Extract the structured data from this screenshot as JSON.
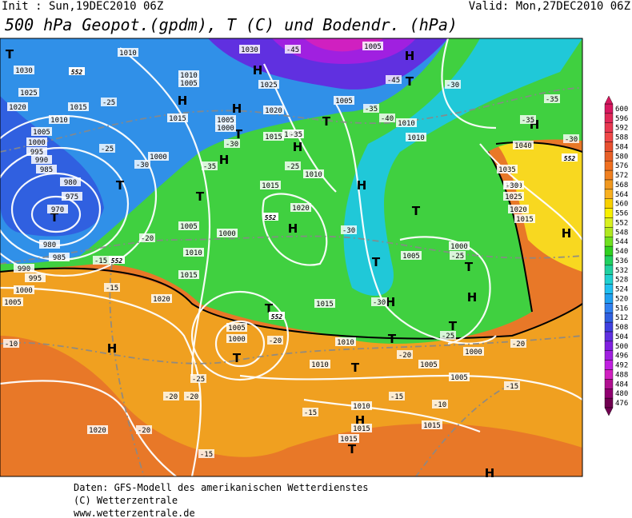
{
  "header": {
    "init": "Init : Sun,19DEC2010 06Z",
    "valid": "Valid: Mon,27DEC2010 06Z",
    "title": "500 hPa Geopot.(gpdm), T (C) und Bodendr. (hPa)"
  },
  "footer": [
    "Daten: GFS-Modell des amerikanischen Wetterdienstes",
    "(C) Wetterzentrale",
    "www.wetterzentrale.de"
  ],
  "colorbar": {
    "ticks": [
      600,
      596,
      592,
      588,
      584,
      580,
      576,
      572,
      568,
      564,
      560,
      556,
      552,
      548,
      544,
      540,
      536,
      532,
      528,
      524,
      520,
      516,
      512,
      508,
      504,
      500,
      496,
      492,
      488,
      484,
      480,
      476
    ],
    "colors": [
      "#d81860",
      "#e02858",
      "#e83850",
      "#f04848",
      "#e85030",
      "#e86028",
      "#f07020",
      "#f08020",
      "#f09820",
      "#f8b020",
      "#f8d000",
      "#f8f000",
      "#d8f020",
      "#b0e820",
      "#70e020",
      "#30d020",
      "#20d060",
      "#20d0a0",
      "#20d0d0",
      "#20c0f0",
      "#20a0f0",
      "#3080f0",
      "#3060e0",
      "#4040e0",
      "#6030e0",
      "#8020e0",
      "#a020e0",
      "#c020e0",
      "#d020c0",
      "#b01090",
      "#900070",
      "#700050"
    ]
  },
  "pressure_centers": [
    "T",
    "H",
    "H",
    "H",
    "T",
    "H",
    "T",
    "T",
    "T",
    "H",
    "H",
    "H",
    "T",
    "T",
    "H",
    "T",
    "H",
    "H",
    "T",
    "T",
    "H",
    "T",
    "H",
    "T",
    "H",
    "H",
    "T",
    "T",
    "H",
    "T",
    "T"
  ],
  "isobar_labels": [
    "1010",
    "1030",
    "1025",
    "1020",
    "1015",
    "1010",
    "1005",
    "1000",
    "995",
    "990",
    "985",
    "980",
    "975",
    "970",
    "980",
    "985",
    "990",
    "995",
    "1000",
    "1005",
    "1010",
    "1005",
    "1015",
    "1005",
    "1000",
    "1015",
    "1020",
    "1005",
    "1010",
    "1010",
    "1000",
    "1015",
    "1010",
    "1020",
    "1005",
    "1000",
    "1010",
    "1015",
    "1020",
    "1005",
    "1000",
    "1015",
    "1010",
    "1010",
    "1005",
    "1005",
    "1000",
    "1005",
    "1000",
    "1040",
    "1035",
    "1030",
    "1025",
    "1020",
    "1015",
    "1010",
    "1015",
    "1015",
    "1015",
    "1020",
    "1030",
    "1005",
    "1025",
    "1005"
  ],
  "isotherm_labels": [
    "-45",
    "-45",
    "-30",
    "-35",
    "-30",
    "-35",
    "-25",
    "-25",
    "-30",
    "-35",
    "-30",
    "-35",
    "-25",
    "-40",
    "-35",
    "-20",
    "-15",
    "-15",
    "-10",
    "-25",
    "-20",
    "-20",
    "-20",
    "-20",
    "-25",
    "-20",
    "-15",
    "-15",
    "-15",
    "-10",
    "-20",
    "-15",
    "-30",
    "-25",
    "-30",
    "-30"
  ],
  "height_labels": [
    "552",
    "552",
    "552",
    "552",
    "552"
  ]
}
